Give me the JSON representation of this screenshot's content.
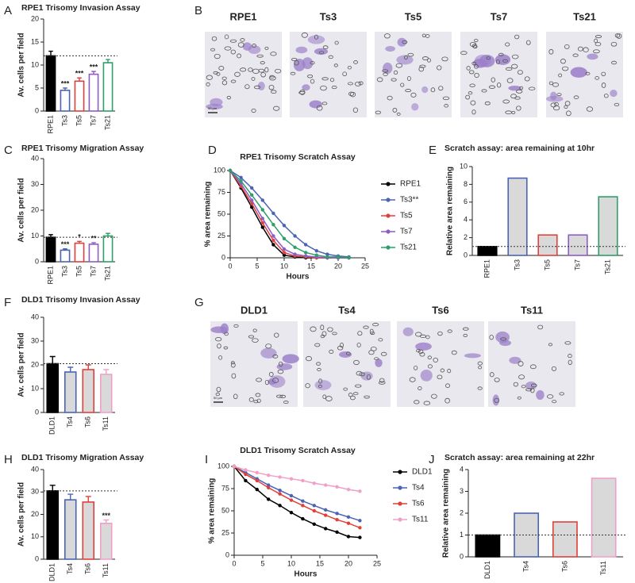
{
  "chart_data": [
    {
      "panel": "A",
      "type": "bar",
      "title": "RPE1 Trisomy Invasion Assay",
      "ylabel": "Av. cells per field",
      "categories": [
        "RPE1",
        "Ts3",
        "Ts5",
        "Ts7",
        "Ts21"
      ],
      "values": [
        12,
        4.5,
        6.5,
        8,
        10.5
      ],
      "errors": [
        1,
        0.5,
        0.7,
        0.6,
        0.7
      ],
      "significance": [
        null,
        "***",
        "***",
        "***",
        null
      ],
      "colors": [
        "#000000",
        "#4a63b5",
        "#e0403a",
        "#8e5cc4",
        "#2e9e6a"
      ],
      "fills": [
        "#000000",
        "#ffffff",
        "#ffffff",
        "#ffffff",
        "#ffffff"
      ],
      "ylim": [
        0,
        20
      ],
      "yticks": [
        0,
        5,
        10,
        15,
        20
      ]
    },
    {
      "panel": "C",
      "type": "bar",
      "title": "RPE1 Trisomy Migration Assay",
      "ylabel": "Av. cells per field",
      "categories": [
        "RPE1",
        "Ts3",
        "Ts5",
        "Ts7",
        "Ts21"
      ],
      "values": [
        9.5,
        4.5,
        7.2,
        6.8,
        10
      ],
      "errors": [
        1,
        0.5,
        0.7,
        0.6,
        1
      ],
      "significance": [
        null,
        "***",
        "*",
        "**",
        null
      ],
      "colors": [
        "#000000",
        "#4a63b5",
        "#e0403a",
        "#8e5cc4",
        "#2e9e6a"
      ],
      "fills": [
        "#000000",
        "#ffffff",
        "#ffffff",
        "#ffffff",
        "#ffffff"
      ],
      "ylim": [
        0,
        40
      ],
      "yticks": [
        0,
        10,
        20,
        30,
        40
      ]
    },
    {
      "panel": "D",
      "type": "line",
      "title": "RPE1 Trisomy Scratch Assay",
      "xlabel": "Hours",
      "ylabel": "% area remaining",
      "x": [
        0,
        2,
        4,
        6,
        8,
        10,
        12,
        14,
        16,
        18,
        20,
        22
      ],
      "series": [
        {
          "name": "RPE1",
          "color": "#000000",
          "values": [
            100,
            80,
            58,
            35,
            15,
            3,
            1,
            0,
            0,
            0,
            0,
            0
          ]
        },
        {
          "name": "Ts3**",
          "color": "#4a63b5",
          "values": [
            100,
            92,
            80,
            66,
            51,
            37,
            25,
            15,
            8,
            4,
            2,
            1
          ]
        },
        {
          "name": "Ts5",
          "color": "#e0403a",
          "values": [
            100,
            82,
            62,
            40,
            20,
            6,
            2,
            1,
            0,
            0,
            0,
            0
          ]
        },
        {
          "name": "Ts7",
          "color": "#8e5cc4",
          "values": [
            100,
            85,
            66,
            45,
            25,
            10,
            4,
            2,
            1,
            0,
            0,
            0
          ]
        },
        {
          "name": "Ts21",
          "color": "#2e9e6a",
          "values": [
            100,
            88,
            72,
            55,
            38,
            22,
            12,
            6,
            3,
            1,
            1,
            0
          ]
        }
      ],
      "xlim": [
        0,
        25
      ],
      "xticks": [
        0,
        5,
        10,
        15,
        20,
        25
      ],
      "ylim": [
        0,
        100
      ],
      "yticks": [
        0,
        25,
        50,
        75,
        100
      ]
    },
    {
      "panel": "E",
      "type": "bar",
      "title": "Scratch assay: area remaining at 10hr",
      "ylabel": "Relative area remaining",
      "categories": [
        "RPE1",
        "Ts3",
        "Ts5",
        "Ts7",
        "Ts21"
      ],
      "values": [
        1,
        8.7,
        2.3,
        2.3,
        6.6
      ],
      "colors": [
        "#000000",
        "#4a63b5",
        "#e0403a",
        "#8e5cc4",
        "#2e9e6a"
      ],
      "fills": [
        "#000000",
        "#d9d9d9",
        "#d9d9d9",
        "#d9d9d9",
        "#d9d9d9"
      ],
      "ylim": [
        0,
        10
      ],
      "yticks": [
        0,
        2,
        4,
        6,
        8,
        10
      ]
    },
    {
      "panel": "F",
      "type": "bar",
      "title": "DLD1 Trisomy Invasion Assay",
      "ylabel": "Av. cells per field",
      "categories": [
        "DLD1",
        "Ts4",
        "Ts6",
        "Ts11"
      ],
      "values": [
        20.5,
        17,
        18,
        16
      ],
      "errors": [
        3,
        2,
        2,
        2
      ],
      "colors": [
        "#000000",
        "#4a63b5",
        "#e0403a",
        "#f0a0c8"
      ],
      "fills": [
        "#000000",
        "#d9d9d9",
        "#d9d9d9",
        "#d9d9d9"
      ],
      "ylim": [
        0,
        40
      ],
      "yticks": [
        0,
        10,
        20,
        30,
        40
      ]
    },
    {
      "panel": "H",
      "type": "bar",
      "title": "DLD1 Trisomy Migration Assay",
      "ylabel": "Av. cells per field",
      "categories": [
        "DLD1",
        "Ts4",
        "Ts6",
        "Ts11"
      ],
      "values": [
        30.5,
        26.5,
        25.5,
        16
      ],
      "errors": [
        2.5,
        2.5,
        2.5,
        1.5
      ],
      "significance": [
        null,
        null,
        null,
        "***"
      ],
      "colors": [
        "#000000",
        "#4a63b5",
        "#e0403a",
        "#f0a0c8"
      ],
      "fills": [
        "#000000",
        "#d9d9d9",
        "#d9d9d9",
        "#d9d9d9"
      ],
      "ylim": [
        0,
        40
      ],
      "yticks": [
        0,
        10,
        20,
        30,
        40
      ]
    },
    {
      "panel": "I",
      "type": "line",
      "title": "DLD1 Trisomy Scratch Assay",
      "xlabel": "Hours",
      "ylabel": "% area remaining",
      "x": [
        0,
        2,
        4,
        6,
        8,
        10,
        12,
        14,
        16,
        18,
        20,
        22
      ],
      "series": [
        {
          "name": "DLD1",
          "color": "#000000",
          "values": [
            100,
            84,
            74,
            63,
            56,
            48,
            41,
            35,
            30,
            26,
            21,
            20
          ]
        },
        {
          "name": "Ts4",
          "color": "#4a63b5",
          "values": [
            100,
            93,
            86,
            79,
            73,
            67,
            61,
            56,
            51,
            47,
            43,
            39
          ]
        },
        {
          "name": "Ts6",
          "color": "#e0403a",
          "values": [
            100,
            91,
            84,
            76,
            69,
            62,
            56,
            50,
            45,
            40,
            36,
            31
          ]
        },
        {
          "name": "Ts11",
          "color": "#f0a0c8",
          "values": [
            100,
            96,
            93,
            90,
            88,
            86,
            84,
            81,
            79,
            77,
            74,
            72
          ]
        }
      ],
      "xlim": [
        0,
        25
      ],
      "xticks": [
        0,
        5,
        10,
        15,
        20,
        25
      ],
      "ylim": [
        0,
        100
      ],
      "yticks": [
        0,
        25,
        50,
        75,
        100
      ]
    },
    {
      "panel": "J",
      "type": "bar",
      "title": "Scratch assay: area remaining at 22hr",
      "ylabel": "Relative area remaining",
      "categories": [
        "DLD1",
        "Ts4",
        "Ts6",
        "Ts11"
      ],
      "values": [
        1,
        2,
        1.6,
        3.6
      ],
      "colors": [
        "#000000",
        "#4a63b5",
        "#e0403a",
        "#f0a0c8"
      ],
      "fills": [
        "#000000",
        "#d9d9d9",
        "#d9d9d9",
        "#d9d9d9"
      ],
      "ylim": [
        0,
        4
      ],
      "yticks": [
        0,
        1,
        2,
        3,
        4
      ]
    }
  ],
  "micrographs": [
    {
      "panel": "B",
      "labels": [
        "RPE1",
        "Ts3",
        "Ts5",
        "Ts7",
        "Ts21"
      ],
      "scale_bar": "50 µm"
    },
    {
      "panel": "G",
      "labels": [
        "DLD1",
        "Ts4",
        "Ts6",
        "Ts11"
      ],
      "scale_bar": "50 µm"
    }
  ]
}
